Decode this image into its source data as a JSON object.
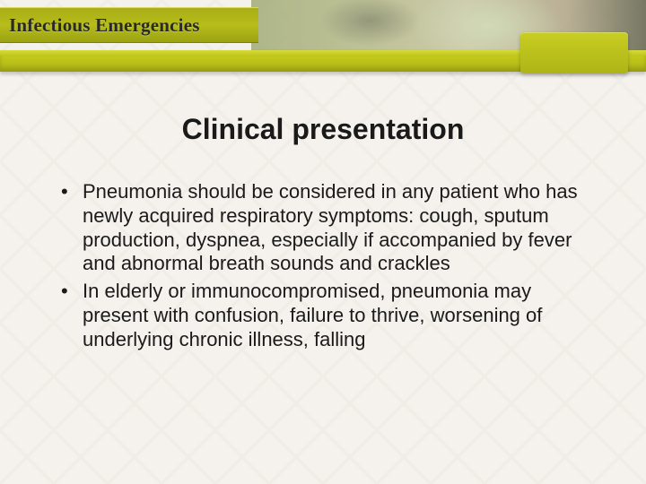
{
  "theme": {
    "olive_green": "#b7bd19",
    "olive_dark": "#9ba213",
    "background": "#f5f2ed",
    "text_color": "#1a1a1a"
  },
  "header": {
    "course_title": "Infectious Emergencies"
  },
  "slide": {
    "title": "Clinical presentation",
    "title_fontsize": 32,
    "body_fontsize": 22,
    "bullets": [
      "Pneumonia should be considered in any patient who has newly acquired respiratory symptoms: cough, sputum production, dyspnea, especially if accompanied by fever and abnormal breath sounds and crackles",
      "In elderly or immunocompromised, pneumonia may present with confusion, failure to thrive, worsening of underlying chronic illness, falling"
    ]
  }
}
